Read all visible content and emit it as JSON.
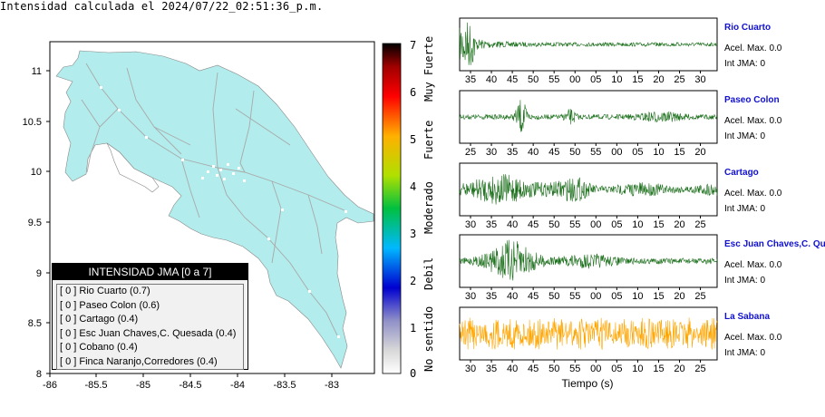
{
  "title": "Intensidad calculada el 2024/07/22_02:51:36_p.m.",
  "map": {
    "x_ticks": [
      "-86",
      "-85.5",
      "-85",
      "-84.5",
      "-84",
      "-83.5",
      "-83"
    ],
    "y_ticks": [
      "11",
      "10.5",
      "10",
      "9.5",
      "9",
      "8.5",
      "8"
    ],
    "land_color": "#b2ecec",
    "road_color": "#a9a9a9"
  },
  "colorbar": {
    "ticks": [
      "0",
      "1",
      "2",
      "3",
      "4",
      "5",
      "6",
      "7"
    ],
    "labels": [
      "No sentido",
      "Debil",
      "Moderado",
      "Fuerte",
      "Muy Fuerte"
    ],
    "colors": [
      "#ffffff",
      "#9090c8",
      "#0000d0",
      "#00b8ff",
      "#00c040",
      "#b0e000",
      "#ffb000",
      "#ff0000",
      "#000000"
    ]
  },
  "legend": {
    "header": "INTENSIDAD JMA [0 a 7]",
    "rows": [
      "[ 0 ] Rio Cuarto (0.7)",
      "[ 0 ] Paseo Colon (0.6)",
      "[ 0 ] Cartago (0.4)",
      "[ 0 ] Esc Juan Chaves,C. Quesada (0.4)",
      "[ 0 ] Cobano (0.4)",
      "[ 0 ] Finca Naranjo,Corredores (0.4)"
    ]
  },
  "waveforms": [
    {
      "station": "Rio Cuarto",
      "acel": "Acel. Max. 0.0",
      "int": "Int JMA: 0",
      "color": "#1a6e1a",
      "ticks": [
        "35",
        "40",
        "45",
        "50",
        "55",
        "00",
        "05",
        "10",
        "15",
        "20",
        "25",
        "30"
      ]
    },
    {
      "station": "Paseo Colon",
      "acel": "Acel. Max. 0.0",
      "int": "Int JMA: 0",
      "color": "#1a6e1a",
      "ticks": [
        "25",
        "30",
        "35",
        "40",
        "45",
        "50",
        "55",
        "00",
        "05",
        "10",
        "15",
        "20"
      ]
    },
    {
      "station": "Cartago",
      "acel": "Acel. Max. 0.0",
      "int": "Int JMA: 0",
      "color": "#1a6e1a",
      "ticks": [
        "30",
        "35",
        "40",
        "45",
        "50",
        "55",
        "00",
        "05",
        "10",
        "15",
        "20",
        "25"
      ]
    },
    {
      "station": "Esc Juan Chaves,C. Qu",
      "acel": "Acel. Max. 0.0",
      "int": "Int JMA: 0",
      "color": "#1a6e1a",
      "ticks": [
        "30",
        "35",
        "40",
        "45",
        "50",
        "55",
        "00",
        "05",
        "10",
        "15",
        "20",
        "25"
      ]
    },
    {
      "station": "La Sabana",
      "acel": "Acel. Max. 0.0",
      "int": "Int JMA: 0",
      "color": "#ffa500",
      "ticks": [
        "30",
        "35",
        "40",
        "45",
        "50",
        "55",
        "00",
        "05",
        "10",
        "15",
        "20",
        "25"
      ]
    }
  ],
  "x_axis_label": "Tiempo (s)"
}
